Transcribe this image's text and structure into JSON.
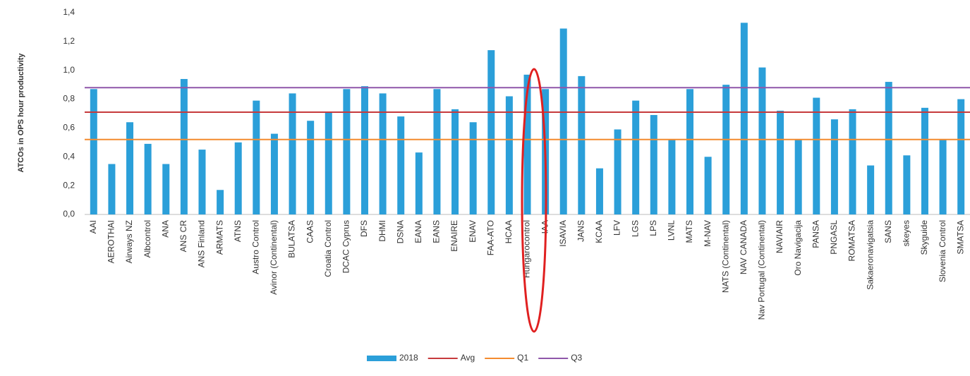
{
  "chart_data": {
    "type": "bar",
    "y_axis_label": "ATCOs in OPS hour productivity",
    "categories": [
      "AAI",
      "AEROTHAI",
      "Airways NZ",
      "Albcontrol",
      "ANA",
      "ANS CR",
      "ANS Finland",
      "ARMATS",
      "ATNS",
      "Austro Control",
      "Avinor (Continental)",
      "BULATSA",
      "CAAS",
      "Croatia Control",
      "DCAC Cyprus",
      "DFS",
      "DHMI",
      "DSNA",
      "EANA",
      "EANS",
      "ENAIRE",
      "ENAV",
      "FAA-ATO",
      "HCAA",
      "Hungarocontrol",
      "IAA",
      "ISAVIA",
      "JANS",
      "KCAA",
      "LFV",
      "LGS",
      "LPS",
      "LVNL",
      "MATS",
      "M-NAV",
      "NATS (Continental)",
      "NAV CANADA",
      "Nav Portugal (Continental)",
      "NAVIAIR",
      "Oro Navigacija",
      "PANSA",
      "PNGASL",
      "ROMATSA",
      "Sakaeronavigatsia",
      "SANS",
      "skeyes",
      "Skyguide",
      "Slovenia Control",
      "SMATSA"
    ],
    "series": [
      {
        "name": "2018",
        "color": "#2b9fd9",
        "values": [
          0.87,
          0.35,
          0.64,
          0.49,
          0.35,
          0.94,
          0.45,
          0.17,
          0.5,
          0.79,
          0.56,
          0.84,
          0.65,
          0.71,
          0.87,
          0.89,
          0.84,
          0.68,
          0.43,
          0.87,
          0.73,
          0.64,
          1.14,
          0.82,
          0.97,
          0.87,
          1.29,
          0.96,
          0.32,
          0.59,
          0.79,
          0.69,
          0.52,
          0.87,
          0.4,
          0.9,
          1.33,
          1.02,
          0.72,
          0.52,
          0.81,
          0.66,
          0.73,
          0.34,
          0.92,
          0.41,
          0.74,
          0.52,
          0.8
        ]
      }
    ],
    "reference_lines": [
      {
        "name": "Avg",
        "color": "#c63a3c",
        "value": 0.71
      },
      {
        "name": "Q1",
        "color": "#f48b2f",
        "value": 0.52
      },
      {
        "name": "Q3",
        "color": "#8f57aa",
        "value": 0.88
      }
    ],
    "ylim": [
      0,
      1.4
    ],
    "yticks": [
      {
        "value": 0,
        "label": "0,0"
      },
      {
        "value": 0.2,
        "label": "0,2"
      },
      {
        "value": 0.4,
        "label": "0,4"
      },
      {
        "value": 0.6,
        "label": "0,6"
      },
      {
        "value": 0.8,
        "label": "0,8"
      },
      {
        "value": 1.0,
        "label": "1,0"
      },
      {
        "value": 1.2,
        "label": "1,2"
      },
      {
        "value": 1.4,
        "label": "1,4"
      }
    ],
    "grid": false,
    "legend": "bottom"
  }
}
